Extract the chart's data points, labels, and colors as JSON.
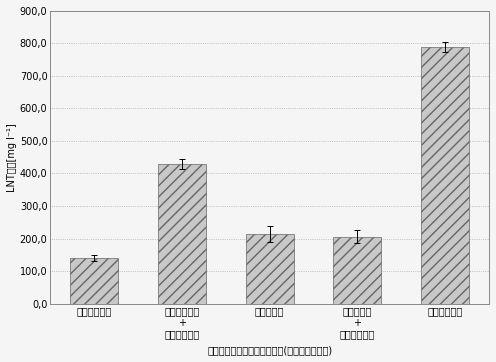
{
  "categories": [
    "グリセロール",
    "グリセロール\n+\nガラクトース",
    "グルコース",
    "グルコース\n+\nガラクトース",
    "ガラクトース"
  ],
  "values": [
    140.0,
    430.0,
    215.0,
    205.0,
    790.0
  ],
  "errors": [
    10.0,
    15.0,
    25.0,
    20.0,
    15.0
  ],
  "ylabel": "LNT膏度[mg l⁻¹]",
  "xlabel": "ラクトースに追加した炎素源(複数の場合あり)",
  "ylim": [
    0.0,
    900.0
  ],
  "yticks": [
    0.0,
    100.0,
    200.0,
    300.0,
    400.0,
    500.0,
    600.0,
    700.0,
    800.0,
    900.0
  ],
  "ytick_labels": [
    "0,0",
    "100,0",
    "200,0",
    "300,0",
    "400,0",
    "500,0",
    "600,0",
    "700,0",
    "800,0",
    "900,0"
  ],
  "bar_color": "#c8c8c8",
  "bar_hatch": "///",
  "bar_edgecolor": "#666666",
  "grid_color": "#999999",
  "grid_linestyle": ":",
  "background_color": "#f5f5f5",
  "border_color": "#888888",
  "axis_fontsize": 7,
  "tick_fontsize": 7,
  "xlabel_fontsize": 7,
  "ylabel_fontsize": 7,
  "bar_width": 0.55
}
